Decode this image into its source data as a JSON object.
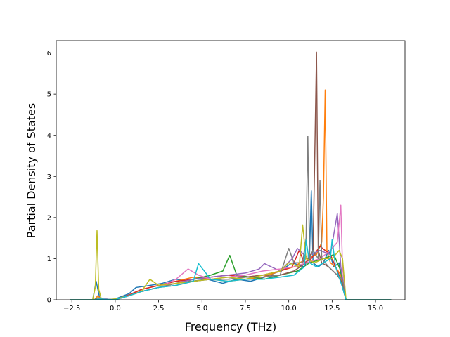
{
  "chart_data": {
    "type": "line",
    "title": "",
    "xlabel": "Frequency (THz)",
    "ylabel": "Partial Density of States",
    "xlim": [
      -3.4,
      16.7
    ],
    "ylim": [
      0,
      6.3
    ],
    "xticks": [
      -2.5,
      0.0,
      2.5,
      5.0,
      7.5,
      10.0,
      12.5,
      15.0
    ],
    "xtick_labels": [
      "−2.5",
      "0.0",
      "2.5",
      "5.0",
      "7.5",
      "10.0",
      "12.5",
      "15.0"
    ],
    "yticks": [
      0,
      1,
      2,
      3,
      4,
      5,
      6
    ],
    "ytick_labels": [
      "0",
      "1",
      "2",
      "3",
      "4",
      "5",
      "6"
    ],
    "grid": false,
    "legend": "none",
    "series": [
      {
        "color": "#1f77b4",
        "x": [
          -2.6,
          -1.3,
          -1.1,
          -0.9,
          -0.5,
          0,
          0.8,
          1.2,
          2,
          2.7,
          3.5,
          4.4,
          5.3,
          6.2,
          7,
          7.8,
          8.6,
          9.5,
          10.2,
          10.9,
          11.2,
          11.3,
          11.4,
          11.7,
          12.0,
          12.3,
          12.6,
          12.9,
          13.1,
          13.3,
          14,
          15.9
        ],
        "y": [
          0,
          0,
          0.45,
          0.05,
          0,
          0.02,
          0.15,
          0.3,
          0.35,
          0.4,
          0.5,
          0.45,
          0.5,
          0.4,
          0.5,
          0.45,
          0.55,
          0.7,
          0.9,
          0.8,
          1.1,
          2.65,
          0.9,
          0.8,
          0.9,
          1.2,
          0.8,
          0.9,
          0.3,
          0,
          0,
          0
        ]
      },
      {
        "color": "#ff7f0e",
        "x": [
          -2.6,
          -1.2,
          -1.0,
          -0.8,
          0,
          0.8,
          1.5,
          2.5,
          3.5,
          4.5,
          5.5,
          6.5,
          7.5,
          8.5,
          9.5,
          10.3,
          11,
          11.6,
          11.9,
          12.0,
          12.1,
          12.2,
          12.4,
          12.7,
          13,
          13.3,
          15.9
        ],
        "y": [
          0,
          0,
          0.1,
          0,
          0,
          0.1,
          0.25,
          0.35,
          0.45,
          0.55,
          0.5,
          0.45,
          0.5,
          0.55,
          0.7,
          0.8,
          1.0,
          1.1,
          1.4,
          2.5,
          5.1,
          1.2,
          0.9,
          0.8,
          0.6,
          0,
          0
        ],
        "name": ""
      },
      {
        "color": "#2ca02c",
        "x": [
          -2.6,
          -1.2,
          -1.0,
          -0.8,
          0,
          0.8,
          1.5,
          2.5,
          3.5,
          4.5,
          5.5,
          6.2,
          6.6,
          7.0,
          7.8,
          8.6,
          9.5,
          10.5,
          11.2,
          12,
          12.6,
          13,
          13.3,
          15.9
        ],
        "y": [
          0,
          0,
          0.05,
          0,
          0,
          0.1,
          0.2,
          0.3,
          0.4,
          0.5,
          0.6,
          0.7,
          1.08,
          0.6,
          0.55,
          0.5,
          0.6,
          0.7,
          0.9,
          1.0,
          1.1,
          0.7,
          0,
          0
        ]
      },
      {
        "color": "#d62728",
        "x": [
          -2.6,
          -1.2,
          -0.9,
          0,
          0.8,
          1.5,
          2.5,
          3.5,
          4.5,
          5.5,
          6.5,
          7.5,
          8.5,
          9.5,
          10.2,
          10.6,
          10.9,
          11.3,
          11.8,
          12.4,
          12.9,
          13.3,
          15.9
        ],
        "y": [
          0,
          0,
          0.03,
          0,
          0.12,
          0.25,
          0.35,
          0.45,
          0.5,
          0.55,
          0.6,
          0.55,
          0.6,
          0.7,
          0.8,
          1.2,
          0.9,
          1.0,
          1.3,
          1.1,
          0.6,
          0,
          0
        ]
      },
      {
        "color": "#9467bd",
        "x": [
          -2.6,
          -1.2,
          -0.9,
          0,
          0.8,
          1.5,
          2.5,
          3.5,
          4.5,
          5.5,
          6.5,
          7.5,
          8.3,
          8.6,
          9.5,
          10.2,
          10.5,
          11,
          11.8,
          12.4,
          12.8,
          12.9,
          13.0,
          13.3,
          15.9
        ],
        "y": [
          0,
          0,
          0.03,
          0,
          0.1,
          0.2,
          0.3,
          0.4,
          0.5,
          0.55,
          0.6,
          0.65,
          0.75,
          0.88,
          0.7,
          1.0,
          1.25,
          1.05,
          1.2,
          1.1,
          2.1,
          1.5,
          0.8,
          0,
          0
        ]
      },
      {
        "color": "#8c564b",
        "x": [
          -2.6,
          -1.2,
          -0.9,
          0,
          0.8,
          1.5,
          2.5,
          3.5,
          4.5,
          5.5,
          6.5,
          7.5,
          8.5,
          9.5,
          10.3,
          11,
          11.4,
          11.5,
          11.6,
          11.7,
          11.9,
          12.3,
          12.8,
          13.1,
          13.3,
          15.9
        ],
        "y": [
          0,
          0,
          0.02,
          0,
          0.1,
          0.2,
          0.3,
          0.35,
          0.45,
          0.5,
          0.5,
          0.55,
          0.6,
          0.6,
          0.7,
          0.9,
          1.2,
          3.5,
          6.02,
          1.2,
          0.9,
          0.8,
          0.6,
          0.4,
          0,
          0
        ]
      },
      {
        "color": "#e377c2",
        "x": [
          -2.6,
          -1.2,
          -0.9,
          0,
          0.8,
          1.5,
          2.5,
          3.5,
          4.2,
          4.8,
          5.5,
          6.5,
          7.5,
          8.5,
          9.5,
          10.3,
          11,
          11.8,
          12.4,
          12.8,
          13.0,
          13.1,
          13.3,
          15.9
        ],
        "y": [
          0,
          0,
          0.03,
          0,
          0.1,
          0.2,
          0.3,
          0.5,
          0.75,
          0.6,
          0.5,
          0.55,
          0.6,
          0.7,
          0.75,
          0.8,
          0.9,
          1.0,
          1.2,
          1.4,
          2.3,
          0.8,
          0,
          0
        ]
      },
      {
        "color": "#7f7f7f",
        "x": [
          -2.6,
          -1.2,
          -0.9,
          0,
          0.8,
          1.5,
          2.5,
          3.5,
          4.5,
          5.5,
          6.5,
          7.5,
          8.5,
          9.5,
          10.0,
          10.3,
          10.8,
          11.0,
          11.1,
          11.2,
          11.4,
          11.7,
          11.8,
          11.9,
          12.3,
          12.8,
          13.1,
          13.3,
          15.9
        ],
        "y": [
          0,
          0,
          0.02,
          0,
          0.1,
          0.2,
          0.3,
          0.4,
          0.45,
          0.5,
          0.5,
          0.55,
          0.55,
          0.6,
          1.25,
          0.9,
          0.9,
          1.5,
          3.98,
          1.0,
          1.2,
          1.0,
          2.9,
          1.0,
          0.8,
          0.6,
          0.5,
          0,
          0
        ]
      },
      {
        "color": "#bcbd22",
        "x": [
          -2.6,
          -1.3,
          -1.15,
          -1.05,
          -0.95,
          -0.8,
          -0.5,
          0,
          0.8,
          1.5,
          2.0,
          2.5,
          3.5,
          4.5,
          5.5,
          6.5,
          7.5,
          8.5,
          9.5,
          10.0,
          10.6,
          10.8,
          11.0,
          11.5,
          12.0,
          12.5,
          12.9,
          13.1,
          13.3,
          15.9
        ],
        "y": [
          0,
          0,
          0.3,
          1.68,
          0.25,
          0.02,
          0,
          0.02,
          0.1,
          0.2,
          0.5,
          0.35,
          0.4,
          0.45,
          0.5,
          0.55,
          0.5,
          0.6,
          0.7,
          0.9,
          0.8,
          1.82,
          1.0,
          0.9,
          1.0,
          1.0,
          1.2,
          1.0,
          0,
          0
        ]
      },
      {
        "color": "#17becf",
        "x": [
          -2.6,
          -1.2,
          -0.9,
          0,
          0.8,
          1.5,
          2.5,
          3.5,
          4.5,
          4.8,
          5.5,
          6.5,
          7.5,
          8.5,
          9.5,
          10.3,
          10.9,
          11.0,
          11.2,
          11.6,
          12.0,
          12.4,
          12.5,
          12.7,
          13.1,
          13.3,
          15.9
        ],
        "y": [
          0,
          0,
          0.02,
          0,
          0.1,
          0.2,
          0.3,
          0.35,
          0.45,
          0.88,
          0.5,
          0.45,
          0.5,
          0.5,
          0.55,
          0.6,
          0.8,
          1.45,
          0.9,
          0.8,
          0.9,
          1.0,
          1.47,
          0.8,
          0.3,
          0,
          0
        ]
      }
    ]
  }
}
